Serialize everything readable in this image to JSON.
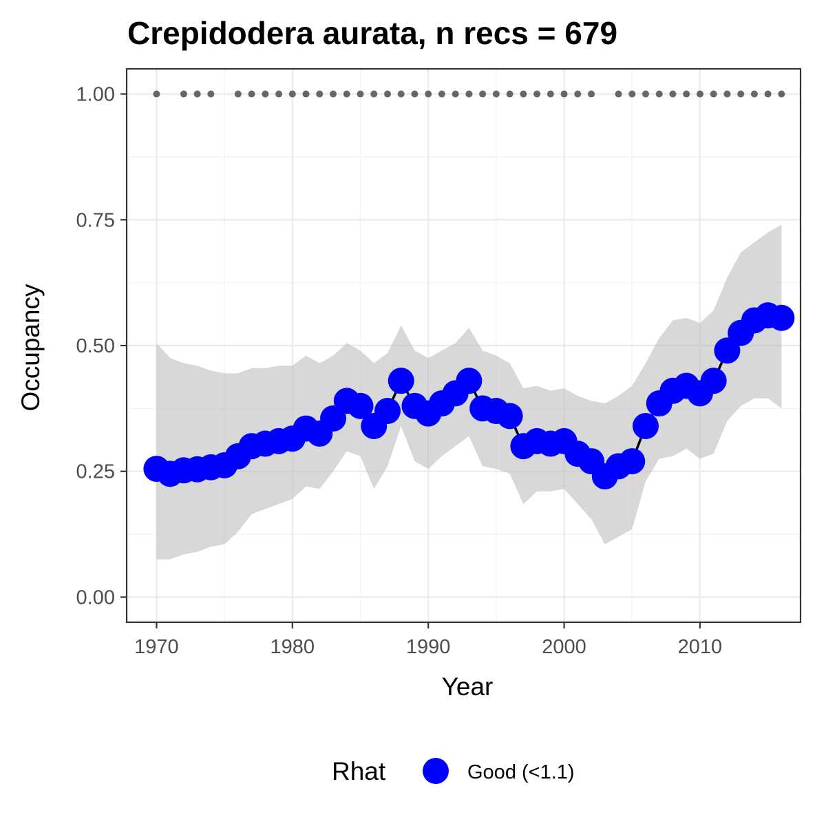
{
  "chart_data": {
    "type": "line",
    "title": "Crepidodera aurata, n recs = 679",
    "xlabel": "Year",
    "ylabel": "Occupancy",
    "xlim": [
      1967.8,
      2017.4
    ],
    "ylim": [
      -0.05,
      1.05
    ],
    "x_ticks": [
      1970,
      1980,
      1990,
      2000,
      2010
    ],
    "x_tick_labels": [
      "1970",
      "1980",
      "1990",
      "2000",
      "2010"
    ],
    "y_ticks": [
      0,
      0.25,
      0.5,
      0.75,
      1.0
    ],
    "y_tick_labels": [
      "0.00",
      "0.25",
      "0.50",
      "0.75",
      "1.00"
    ],
    "grid": true,
    "legend": {
      "title": "Rhat",
      "position": "bottom",
      "entries": [
        {
          "label": "Good (<1.1)",
          "color": "#0000ff"
        }
      ]
    },
    "colors": {
      "point": "#0000ff",
      "line": "#000000",
      "ribbon": "#bebebe",
      "record_dots": "#666666"
    },
    "record_years": [
      1970,
      1972,
      1973,
      1974,
      1976,
      1977,
      1978,
      1979,
      1980,
      1981,
      1982,
      1983,
      1984,
      1985,
      1986,
      1987,
      1988,
      1989,
      1990,
      1991,
      1992,
      1993,
      1994,
      1995,
      1996,
      1997,
      1998,
      1999,
      2000,
      2001,
      2002,
      2004,
      2005,
      2006,
      2007,
      2008,
      2009,
      2010,
      2011,
      2012,
      2013,
      2014,
      2015,
      2016
    ],
    "record_value": 1.0,
    "series": [
      {
        "x": [
          1970,
          1971,
          1972,
          1973,
          1974,
          1975,
          1976,
          1977,
          1978,
          1979,
          1980,
          1981,
          1982,
          1983,
          1984,
          1985,
          1986,
          1987,
          1988,
          1989,
          1990,
          1991,
          1992,
          1993,
          1994,
          1995,
          1996,
          1997,
          1998,
          1999,
          2000,
          2001,
          2002,
          2003,
          2004,
          2005,
          2006,
          2007,
          2008,
          2009,
          2010,
          2011,
          2012,
          2013,
          2014,
          2015,
          2016
        ],
        "mean": [
          0.255,
          0.245,
          0.252,
          0.254,
          0.258,
          0.262,
          0.28,
          0.3,
          0.305,
          0.31,
          0.315,
          0.335,
          0.325,
          0.355,
          0.39,
          0.38,
          0.34,
          0.37,
          0.43,
          0.38,
          0.365,
          0.385,
          0.405,
          0.43,
          0.375,
          0.37,
          0.36,
          0.3,
          0.31,
          0.305,
          0.31,
          0.285,
          0.27,
          0.24,
          0.26,
          0.27,
          0.34,
          0.385,
          0.41,
          0.42,
          0.405,
          0.43,
          0.49,
          0.525,
          0.55,
          0.56,
          0.555
        ],
        "lower": [
          0.075,
          0.075,
          0.085,
          0.09,
          0.1,
          0.105,
          0.13,
          0.165,
          0.175,
          0.185,
          0.195,
          0.22,
          0.215,
          0.25,
          0.29,
          0.28,
          0.215,
          0.26,
          0.34,
          0.27,
          0.255,
          0.28,
          0.3,
          0.32,
          0.26,
          0.255,
          0.245,
          0.185,
          0.21,
          0.21,
          0.215,
          0.185,
          0.155,
          0.105,
          0.12,
          0.135,
          0.23,
          0.275,
          0.28,
          0.295,
          0.275,
          0.285,
          0.35,
          0.38,
          0.395,
          0.395,
          0.375
        ],
        "upper": [
          0.505,
          0.475,
          0.465,
          0.46,
          0.45,
          0.445,
          0.445,
          0.455,
          0.455,
          0.46,
          0.46,
          0.48,
          0.465,
          0.48,
          0.505,
          0.49,
          0.465,
          0.485,
          0.54,
          0.49,
          0.475,
          0.49,
          0.505,
          0.535,
          0.49,
          0.48,
          0.465,
          0.415,
          0.42,
          0.41,
          0.415,
          0.4,
          0.39,
          0.385,
          0.4,
          0.42,
          0.465,
          0.515,
          0.55,
          0.555,
          0.545,
          0.57,
          0.635,
          0.685,
          0.705,
          0.725,
          0.74
        ]
      }
    ]
  }
}
